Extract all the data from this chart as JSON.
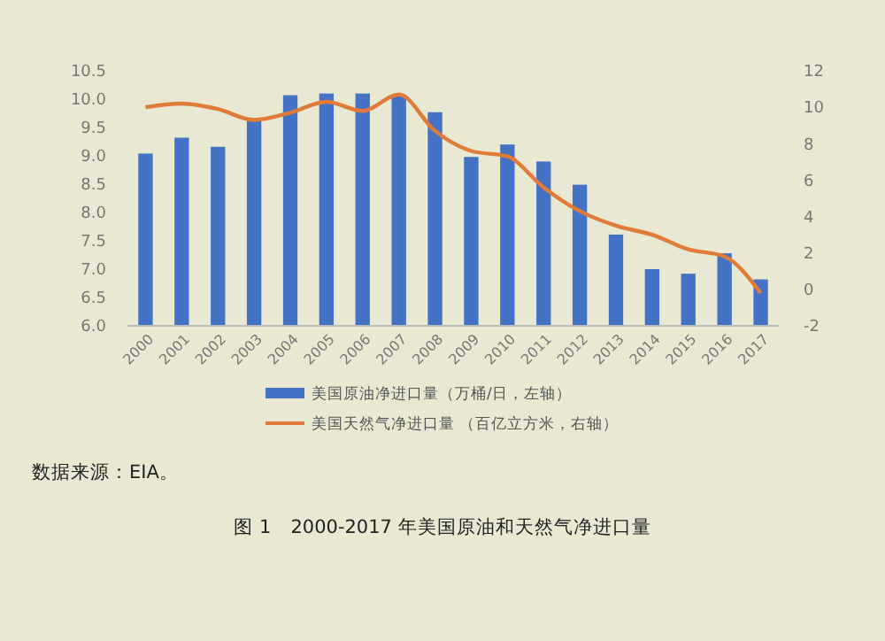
{
  "chart_data": {
    "type": "bar",
    "categories": [
      "2000",
      "2001",
      "2002",
      "2003",
      "2004",
      "2005",
      "2006",
      "2007",
      "2008",
      "2009",
      "2010",
      "2011",
      "2012",
      "2013",
      "2014",
      "2015",
      "2016",
      "2017"
    ],
    "series": [
      {
        "name": "美国原油净进口量（万桶/日，左轴）",
        "color": "#4472c4",
        "values": [
          9.04,
          9.32,
          9.16,
          9.65,
          10.07,
          10.1,
          10.1,
          10.08,
          9.77,
          8.98,
          9.2,
          8.9,
          8.49,
          7.61,
          7.0,
          6.92,
          7.28,
          6.82
        ]
      },
      {
        "name": "美国天然气净进口量 （百亿立方米，右轴）",
        "color": "#e07b39",
        "type": "line",
        "axis": "y2",
        "values": [
          10.0,
          10.2,
          9.9,
          9.3,
          9.7,
          10.3,
          9.8,
          10.7,
          8.7,
          7.6,
          7.3,
          5.6,
          4.3,
          3.5,
          3.0,
          2.2,
          1.8,
          -0.2
        ]
      }
    ],
    "ylim": [
      6.0,
      10.5
    ],
    "yticks": [
      {
        "value": 6.0,
        "label": "6.0"
      },
      6.5,
      {
        "value": 7.0,
        "label": "7.0"
      },
      7.5,
      {
        "value": 8.0,
        "label": "8.0"
      },
      8.5,
      {
        "value": 9.0,
        "label": "9.0"
      },
      9.5,
      {
        "value": 10.0,
        "label": "10.0"
      },
      10.5
    ],
    "y2lim": [
      -2,
      12
    ],
    "y2ticks": [
      -2,
      0,
      2,
      4,
      6,
      8,
      10,
      12
    ],
    "grid": false,
    "legend": "bottom",
    "marker": "none",
    "line_style": "solid",
    "annotations": [
      "数据来源：EIA。",
      "图 1　2000-2017 年美国原油和天然气净进口量"
    ]
  }
}
